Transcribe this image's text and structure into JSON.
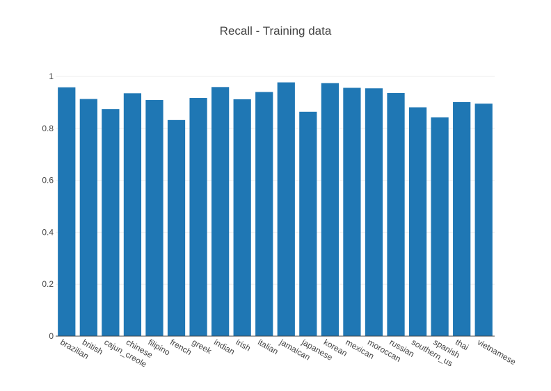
{
  "chart_data": {
    "type": "bar",
    "title": "Recall - Training data",
    "xlabel": "",
    "ylabel": "",
    "ylim": [
      0,
      1
    ],
    "yticks": [
      0,
      0.2,
      0.4,
      0.6,
      0.8,
      1
    ],
    "ytick_labels": [
      "0",
      "0.2",
      "0.4",
      "0.6",
      "0.8",
      "1"
    ],
    "grid": true,
    "bar_color": "#1f77b4",
    "categories": [
      "brazilian",
      "british",
      "cajun_creole",
      "chinese",
      "filipino",
      "french",
      "greek",
      "indian",
      "irish",
      "italian",
      "jamaican",
      "japanese",
      "korean",
      "mexican",
      "moroccan",
      "russian",
      "southern_us",
      "spanish",
      "thai",
      "vietnamese"
    ],
    "values": [
      0.958,
      0.913,
      0.874,
      0.935,
      0.909,
      0.832,
      0.917,
      0.959,
      0.912,
      0.94,
      0.977,
      0.864,
      0.974,
      0.956,
      0.954,
      0.936,
      0.881,
      0.842,
      0.901,
      0.895
    ]
  }
}
